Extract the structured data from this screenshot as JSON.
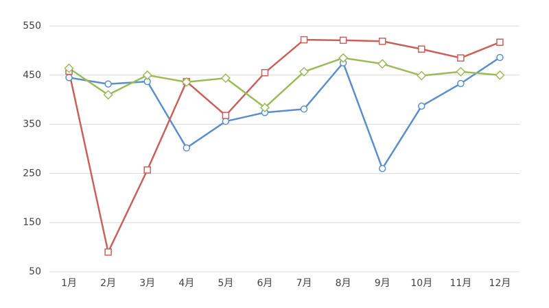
{
  "chart_data": {
    "type": "line",
    "categories": [
      "1月",
      "2月",
      "3月",
      "4月",
      "5月",
      "6月",
      "7月",
      "8月",
      "9月",
      "10月",
      "11月",
      "12月"
    ],
    "series": [
      {
        "color": "#5b8fcb",
        "marker": "circle",
        "values": [
          445,
          432,
          437,
          302,
          356,
          374,
          381,
          475,
          260,
          387,
          433,
          486
        ]
      },
      {
        "color": "#c9605b",
        "marker": "square",
        "values": [
          458,
          90,
          257,
          437,
          368,
          455,
          522,
          521,
          519,
          503,
          485,
          517
        ]
      },
      {
        "color": "#9bbb59",
        "marker": "diamond",
        "values": [
          464,
          410,
          450,
          436,
          444,
          384,
          457,
          485,
          473,
          449,
          457,
          450
        ]
      }
    ],
    "ylim": [
      50,
      550
    ],
    "yticks": [
      50,
      150,
      250,
      350,
      450,
      550
    ],
    "grid": true
  }
}
